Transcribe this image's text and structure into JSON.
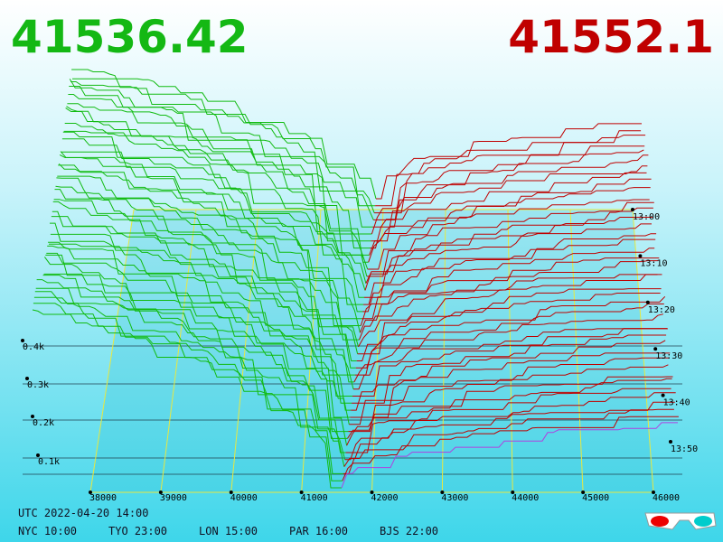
{
  "header": {
    "bid": "41536.42",
    "ask": "41552.1"
  },
  "price_axis": [
    "38000",
    "39000",
    "40000",
    "41000",
    "42000",
    "43000",
    "44000",
    "45000",
    "46000"
  ],
  "depth_axis": [
    "0.4k",
    "0.3k",
    "0.2k",
    "0.1k"
  ],
  "time_axis": [
    "13:00",
    "13:10",
    "13:20",
    "13:30",
    "13:40",
    "13:50"
  ],
  "footer": {
    "utc": "UTC 2022-04-20 14:00",
    "zones": [
      "NYC 10:00",
      "TYO 23:00",
      "LON 15:00",
      "PAR 16:00",
      "BJS 22:00"
    ]
  }
}
